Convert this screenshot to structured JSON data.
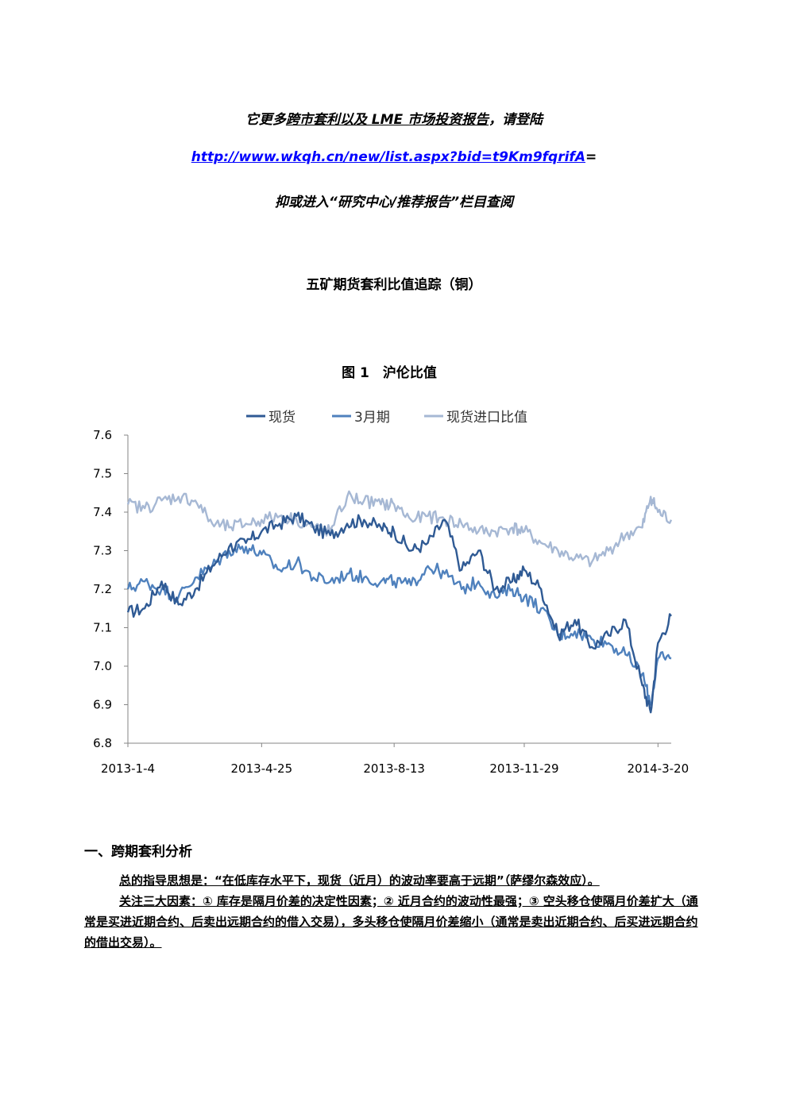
{
  "promo": {
    "line1_a": "它更多",
    "line1_b": "跨市套利以及 LME 市场投资报告",
    "line1_c": "，请登陆",
    "link": "http://www.wkqh.cn/new/list.aspx?bid=t9Km9fqrifA",
    "link_suffix": "=",
    "line3": "抑或进入“研究中心/推荐报告”栏目查阅"
  },
  "document": {
    "title": "五矿期货套利比值追踪（铜）"
  },
  "chart_data": {
    "type": "line",
    "title": "图 1　沪伦比值",
    "ylim": [
      6.8,
      7.6
    ],
    "yticks": [
      "6.8",
      "6.9",
      "7.0",
      "7.1",
      "7.2",
      "7.3",
      "7.4",
      "7.5",
      "7.6"
    ],
    "xtick_labels": [
      "2013-1-4",
      "2013-4-25",
      "2013-8-13",
      "2013-11-29",
      "2014-3-20"
    ],
    "x_start": "2013-01-04",
    "x_end": "2014-03-31",
    "grid": false,
    "legend_position": "top",
    "series": [
      {
        "name": "现货",
        "color": "#2f5a94",
        "points": [
          [
            "2013-01-04",
            7.14
          ],
          [
            "2013-01-18",
            7.15
          ],
          [
            "2013-02-01",
            7.22
          ],
          [
            "2013-02-15",
            7.16
          ],
          [
            "2013-03-01",
            7.2
          ],
          [
            "2013-03-15",
            7.26
          ],
          [
            "2013-03-29",
            7.31
          ],
          [
            "2013-04-12",
            7.32
          ],
          [
            "2013-04-25",
            7.35
          ],
          [
            "2013-05-10",
            7.37
          ],
          [
            "2013-05-24",
            7.39
          ],
          [
            "2013-06-07",
            7.36
          ],
          [
            "2013-06-21",
            7.34
          ],
          [
            "2013-07-05",
            7.37
          ],
          [
            "2013-07-19",
            7.38
          ],
          [
            "2013-08-02",
            7.36
          ],
          [
            "2013-08-13",
            7.35
          ],
          [
            "2013-08-27",
            7.3
          ],
          [
            "2013-09-10",
            7.32
          ],
          [
            "2013-09-24",
            7.38
          ],
          [
            "2013-10-08",
            7.25
          ],
          [
            "2013-10-22",
            7.3
          ],
          [
            "2013-11-05",
            7.2
          ],
          [
            "2013-11-19",
            7.22
          ],
          [
            "2013-11-29",
            7.25
          ],
          [
            "2013-12-13",
            7.2
          ],
          [
            "2013-12-27",
            7.08
          ],
          [
            "2014-01-10",
            7.12
          ],
          [
            "2014-01-24",
            7.05
          ],
          [
            "2014-02-07",
            7.08
          ],
          [
            "2014-02-21",
            7.12
          ],
          [
            "2014-03-07",
            6.95
          ],
          [
            "2014-03-14",
            6.88
          ],
          [
            "2014-03-20",
            7.06
          ],
          [
            "2014-03-31",
            7.13
          ]
        ]
      },
      {
        "name": "3月期",
        "color": "#4f81bd",
        "points": [
          [
            "2013-01-04",
            7.2
          ],
          [
            "2013-01-18",
            7.22
          ],
          [
            "2013-02-01",
            7.2
          ],
          [
            "2013-02-15",
            7.18
          ],
          [
            "2013-03-01",
            7.23
          ],
          [
            "2013-03-15",
            7.26
          ],
          [
            "2013-03-29",
            7.3
          ],
          [
            "2013-04-12",
            7.31
          ],
          [
            "2013-04-25",
            7.29
          ],
          [
            "2013-05-10",
            7.25
          ],
          [
            "2013-05-24",
            7.27
          ],
          [
            "2013-06-07",
            7.23
          ],
          [
            "2013-06-21",
            7.22
          ],
          [
            "2013-07-05",
            7.24
          ],
          [
            "2013-07-19",
            7.23
          ],
          [
            "2013-08-02",
            7.22
          ],
          [
            "2013-08-13",
            7.22
          ],
          [
            "2013-08-27",
            7.21
          ],
          [
            "2013-09-10",
            7.26
          ],
          [
            "2013-09-24",
            7.24
          ],
          [
            "2013-10-08",
            7.2
          ],
          [
            "2013-10-22",
            7.22
          ],
          [
            "2013-11-05",
            7.18
          ],
          [
            "2013-11-19",
            7.2
          ],
          [
            "2013-11-29",
            7.18
          ],
          [
            "2013-12-13",
            7.15
          ],
          [
            "2013-12-27",
            7.08
          ],
          [
            "2014-01-10",
            7.09
          ],
          [
            "2014-01-24",
            7.07
          ],
          [
            "2014-02-07",
            7.06
          ],
          [
            "2014-02-21",
            7.03
          ],
          [
            "2014-03-07",
            6.98
          ],
          [
            "2014-03-14",
            6.9
          ],
          [
            "2014-03-20",
            7.02
          ],
          [
            "2014-03-31",
            7.02
          ]
        ]
      },
      {
        "name": "现货进口比值",
        "color": "#a6b8d4",
        "points": [
          [
            "2013-01-04",
            7.42
          ],
          [
            "2013-01-18",
            7.41
          ],
          [
            "2013-02-01",
            7.43
          ],
          [
            "2013-02-15",
            7.44
          ],
          [
            "2013-03-01",
            7.43
          ],
          [
            "2013-03-15",
            7.37
          ],
          [
            "2013-03-29",
            7.36
          ],
          [
            "2013-04-12",
            7.37
          ],
          [
            "2013-04-25",
            7.38
          ],
          [
            "2013-05-10",
            7.39
          ],
          [
            "2013-05-24",
            7.38
          ],
          [
            "2013-06-07",
            7.36
          ],
          [
            "2013-06-21",
            7.35
          ],
          [
            "2013-07-05",
            7.44
          ],
          [
            "2013-07-19",
            7.43
          ],
          [
            "2013-08-02",
            7.42
          ],
          [
            "2013-08-13",
            7.42
          ],
          [
            "2013-08-27",
            7.38
          ],
          [
            "2013-09-10",
            7.39
          ],
          [
            "2013-09-24",
            7.38
          ],
          [
            "2013-10-08",
            7.37
          ],
          [
            "2013-10-22",
            7.35
          ],
          [
            "2013-11-05",
            7.35
          ],
          [
            "2013-11-19",
            7.36
          ],
          [
            "2013-11-29",
            7.35
          ],
          [
            "2013-12-13",
            7.32
          ],
          [
            "2013-12-27",
            7.3
          ],
          [
            "2014-01-10",
            7.28
          ],
          [
            "2014-01-24",
            7.27
          ],
          [
            "2014-02-07",
            7.3
          ],
          [
            "2014-02-21",
            7.34
          ],
          [
            "2014-03-07",
            7.36
          ],
          [
            "2014-03-14",
            7.44
          ],
          [
            "2014-03-20",
            7.4
          ],
          [
            "2014-03-31",
            7.38
          ]
        ]
      }
    ]
  },
  "section": {
    "heading": "一、跨期套利分析",
    "para1": "总的指导思想是：“在低库存水平下，现货（近月）的波动率要高于远期”（萨缪尔森效应）。",
    "para2": "关注三大因素：① 库存是隔月价差的决定性因素；② 近月合约的波动性最强；③ 空头移仓使隔月价差扩大（通常是买进近期合约、后卖出远期合约的借入交易），多头移仓使隔月价差缩小（通常是卖出近期合约、后买进远期合约的借出交易）。"
  }
}
